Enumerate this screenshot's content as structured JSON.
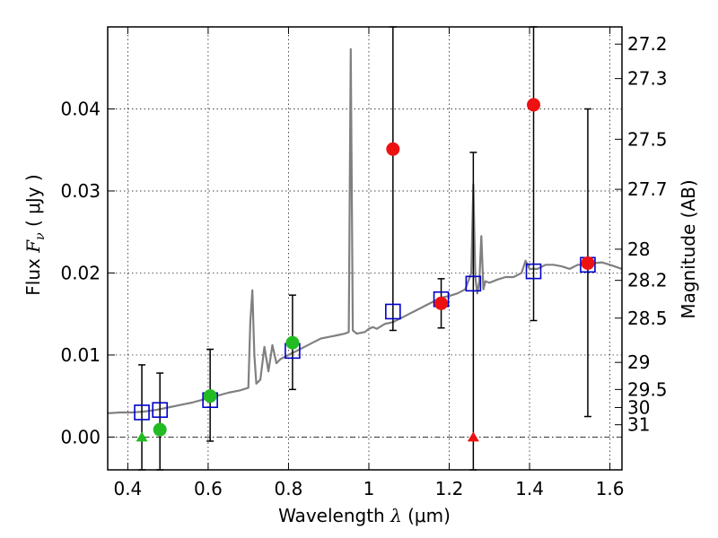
{
  "chart_data": {
    "type": "scatter",
    "xlabel": {
      "prefix": "Wavelength  ",
      "symbol": "λ",
      "suffix": " (μm)"
    },
    "ylabel": {
      "prefix": "Flux  ",
      "symbol": "F",
      "subscript": "ν",
      "suffix": "  ( μJy )"
    },
    "y2label": "Magnitude (AB)",
    "xlim": [
      0.35,
      1.63
    ],
    "ylim": [
      -0.004,
      0.05
    ],
    "grid": true,
    "x_ticks": [
      0.4,
      0.6,
      0.8,
      1.0,
      1.2,
      1.4,
      1.6
    ],
    "x_tick_labels": [
      "0.4",
      "0.6",
      "0.8",
      "1",
      "1.2",
      "1.4",
      "1.6"
    ],
    "y_ticks": [
      0.0,
      0.01,
      0.02,
      0.03,
      0.04
    ],
    "y_tick_labels": [
      "0.00",
      "0.01",
      "0.02",
      "0.03",
      "0.04"
    ],
    "mag_ticks": [
      {
        "label": "27.2",
        "flux": 0.0479
      },
      {
        "label": "27.3",
        "flux": 0.0437
      },
      {
        "label": "27.5",
        "flux": 0.0363
      },
      {
        "label": "27.7",
        "flux": 0.0302
      },
      {
        "label": "28",
        "flux": 0.0229
      },
      {
        "label": "28.2",
        "flux": 0.0191
      },
      {
        "label": "28.5",
        "flux": 0.0145
      },
      {
        "label": "29",
        "flux": 0.0091
      },
      {
        "label": "29.5",
        "flux": 0.0058
      },
      {
        "label": "30",
        "flux": 0.0036
      },
      {
        "label": "31",
        "flux": 0.0015
      }
    ],
    "colors": {
      "spectrum": "#808080",
      "model": "#0000cc",
      "green": "#22bb22",
      "red": "#ee1111",
      "errorbar": "#000000",
      "grid": "#000000"
    },
    "series": [
      {
        "name": "model spectrum",
        "kind": "line",
        "x": [
          0.35,
          0.38,
          0.41,
          0.44,
          0.47,
          0.5,
          0.53,
          0.56,
          0.59,
          0.62,
          0.65,
          0.68,
          0.7,
          0.705,
          0.71,
          0.715,
          0.72,
          0.73,
          0.74,
          0.75,
          0.76,
          0.77,
          0.78,
          0.8,
          0.82,
          0.84,
          0.86,
          0.88,
          0.9,
          0.92,
          0.94,
          0.95,
          0.955,
          0.96,
          0.965,
          0.97,
          0.99,
          1.0,
          1.01,
          1.02,
          1.04,
          1.06,
          1.08,
          1.1,
          1.12,
          1.14,
          1.16,
          1.18,
          1.2,
          1.22,
          1.24,
          1.255,
          1.26,
          1.265,
          1.27,
          1.275,
          1.28,
          1.285,
          1.29,
          1.3,
          1.32,
          1.34,
          1.36,
          1.38,
          1.39,
          1.4,
          1.42,
          1.44,
          1.46,
          1.48,
          1.5,
          1.52,
          1.54,
          1.56,
          1.58,
          1.6,
          1.63
        ],
        "y": [
          0.0029,
          0.003,
          0.003,
          0.0031,
          0.0033,
          0.0036,
          0.0039,
          0.0042,
          0.0046,
          0.005,
          0.0054,
          0.0057,
          0.006,
          0.014,
          0.0179,
          0.01,
          0.0065,
          0.007,
          0.011,
          0.008,
          0.0112,
          0.009,
          0.0095,
          0.01,
          0.0105,
          0.011,
          0.0115,
          0.012,
          0.0122,
          0.0124,
          0.0126,
          0.0128,
          0.0473,
          0.013,
          0.0128,
          0.0126,
          0.0128,
          0.0132,
          0.0134,
          0.0132,
          0.0138,
          0.014,
          0.0145,
          0.015,
          0.0155,
          0.016,
          0.0165,
          0.017,
          0.0172,
          0.0175,
          0.018,
          0.02,
          0.0308,
          0.0195,
          0.0175,
          0.019,
          0.0245,
          0.018,
          0.019,
          0.0188,
          0.0192,
          0.0195,
          0.0195,
          0.02,
          0.0215,
          0.0205,
          0.0205,
          0.021,
          0.021,
          0.0208,
          0.0205,
          0.021,
          0.021,
          0.0212,
          0.0213,
          0.021,
          0.0205
        ]
      },
      {
        "name": "model photometry",
        "kind": "open-square",
        "x": [
          0.435,
          0.48,
          0.605,
          0.81,
          1.06,
          1.18,
          1.26,
          1.41,
          1.545
        ],
        "y": [
          0.003,
          0.0033,
          0.0045,
          0.0105,
          0.0153,
          0.0168,
          0.0187,
          0.0202,
          0.021
        ]
      },
      {
        "name": "observed (green)",
        "kind": "filled-circle",
        "x": [
          0.48,
          0.605,
          0.81
        ],
        "y": [
          0.0009,
          0.005,
          0.0115
        ],
        "err_low": [
          -0.004,
          -0.0005,
          0.0058
        ],
        "err_high": [
          0.0078,
          0.0107,
          0.0173
        ]
      },
      {
        "name": "observed (red)",
        "kind": "filled-circle",
        "x": [
          1.06,
          1.18,
          1.41,
          1.545
        ],
        "y": [
          0.0351,
          0.0163,
          0.0405,
          0.0212
        ],
        "err_low": [
          0.013,
          0.0133,
          0.0142,
          0.0025
        ],
        "err_high": [
          0.05,
          0.0193,
          0.05,
          0.04
        ]
      },
      {
        "name": "upper limit (green)",
        "kind": "triangle",
        "x": [
          0.435
        ],
        "y": [
          0.0
        ],
        "err_low": [
          -0.004
        ],
        "err_high": [
          0.0088
        ]
      },
      {
        "name": "upper limit (red)",
        "kind": "triangle",
        "x": [
          1.26
        ],
        "y": [
          0.0
        ],
        "err_low": [
          -0.004
        ],
        "err_high": [
          0.0347
        ]
      }
    ]
  }
}
